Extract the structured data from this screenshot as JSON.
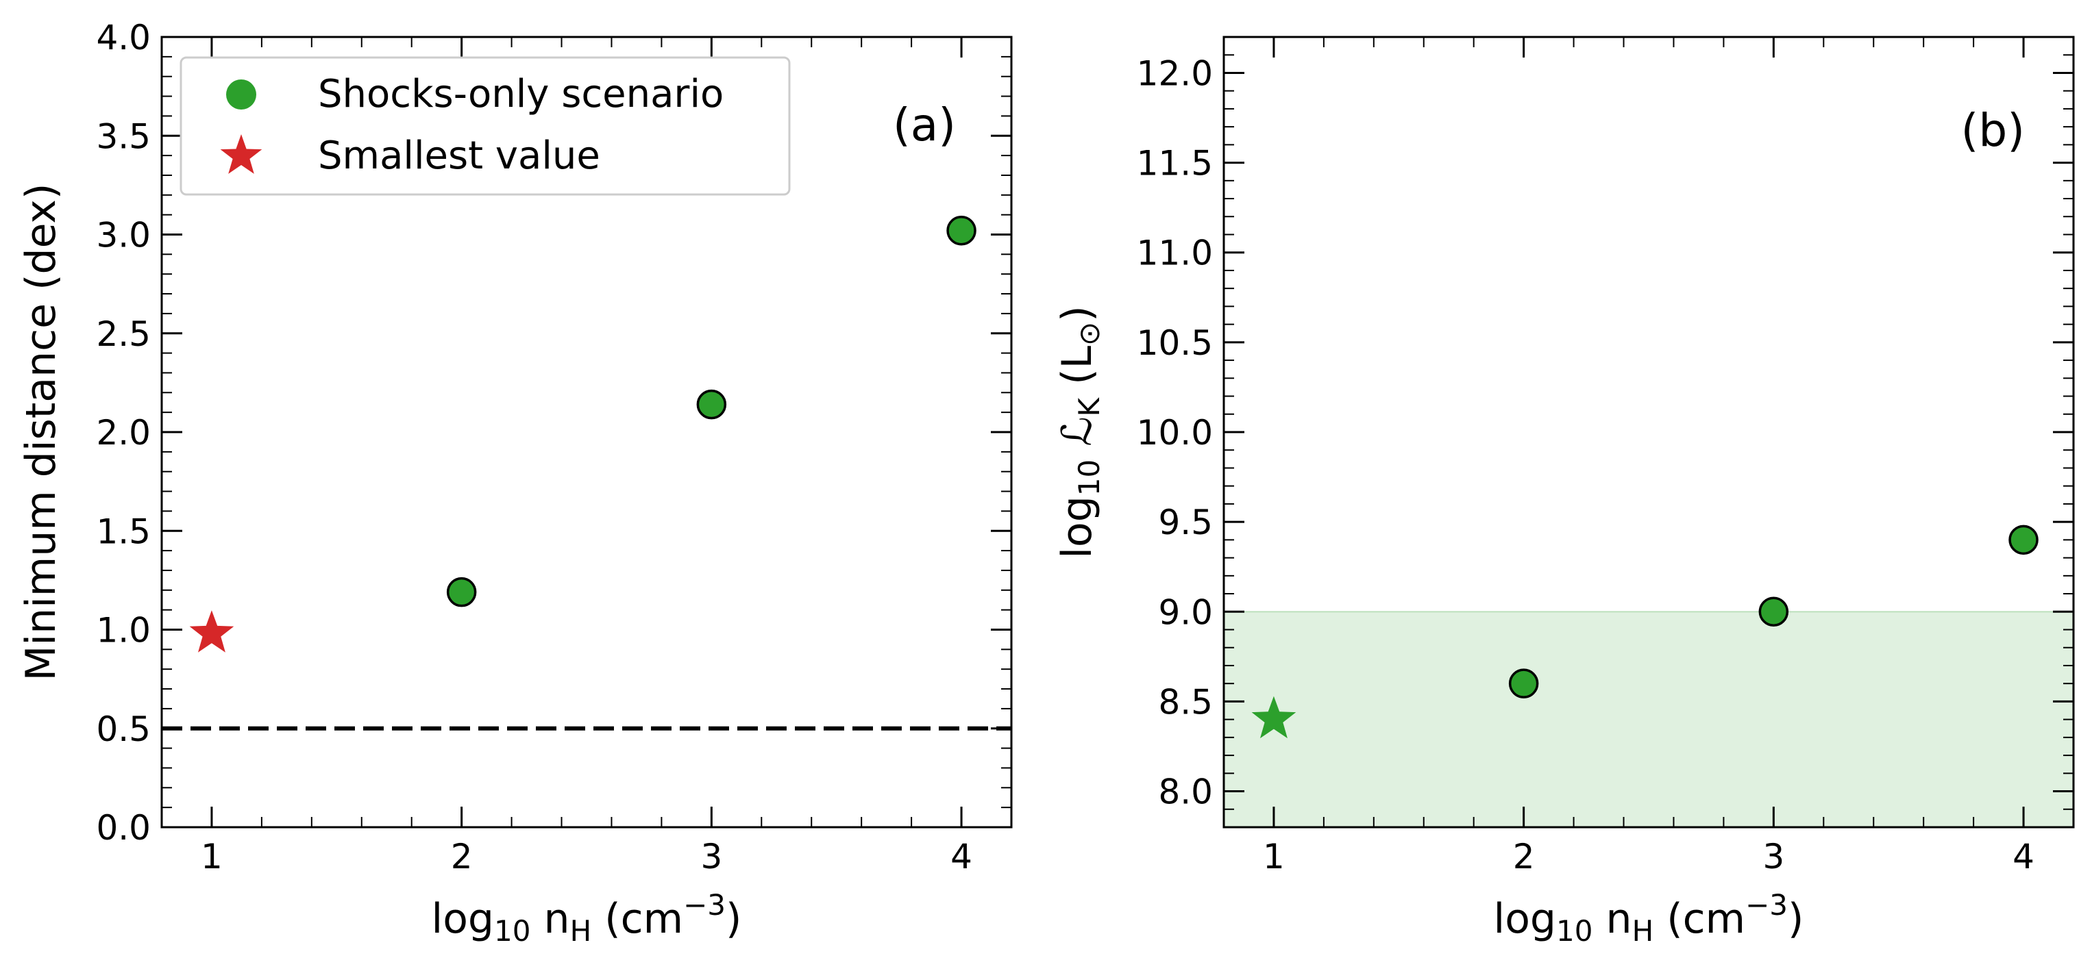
{
  "chart_data": [
    {
      "type": "scatter",
      "panel_label": "(a)",
      "xlabel": {
        "base": "log",
        "sub": "10",
        "mid": "  n",
        "msub": "H",
        "unit": " (cm",
        "sup": "−3",
        "close": ")"
      },
      "ylabel": "Minimum distance (dex)",
      "xlim": [
        0.8,
        4.2
      ],
      "ylim": [
        0.0,
        4.0
      ],
      "x_ticks": [
        1,
        2,
        3,
        4
      ],
      "x_tick_labels": [
        "1",
        "2",
        "3",
        "4"
      ],
      "y_ticks": [
        0.0,
        0.5,
        1.0,
        1.5,
        2.0,
        2.5,
        3.0,
        3.5,
        4.0
      ],
      "y_tick_labels": [
        "0.0",
        "0.5",
        "1.0",
        "1.5",
        "2.0",
        "2.5",
        "3.0",
        "3.5",
        "4.0"
      ],
      "series": [
        {
          "name": "Shocks-only scenario",
          "marker": "circle",
          "color": "#2ca02c",
          "x": [
            2,
            3,
            4
          ],
          "y": [
            1.19,
            2.14,
            3.02
          ]
        },
        {
          "name": "Smallest value",
          "marker": "star",
          "color": "#d62728",
          "x": [
            1
          ],
          "y": [
            0.98
          ]
        }
      ],
      "hline": {
        "y": 0.5,
        "style": "dashed",
        "color": "#000000"
      },
      "legend_position": "top-left"
    },
    {
      "type": "scatter",
      "panel_label": "(b)",
      "xlabel": {
        "base": "log",
        "sub": "10",
        "mid": "  n",
        "msub": "H",
        "unit": " (cm",
        "sup": "−3",
        "close": ")"
      },
      "ylabel": {
        "base": "log",
        "sub": "10",
        "mid": "  ℒ",
        "msub": "K",
        "unit": " (L",
        "usub": "⊙",
        "close": ")"
      },
      "xlim": [
        0.8,
        4.2
      ],
      "ylim": [
        7.8,
        12.2
      ],
      "x_ticks": [
        1,
        2,
        3,
        4
      ],
      "x_tick_labels": [
        "1",
        "2",
        "3",
        "4"
      ],
      "y_ticks": [
        8.0,
        8.5,
        9.0,
        9.5,
        10.0,
        10.5,
        11.0,
        11.5,
        12.0
      ],
      "y_tick_labels": [
        "8.0",
        "8.5",
        "9.0",
        "9.5",
        "10.0",
        "10.5",
        "11.0",
        "11.5",
        "12.0"
      ],
      "series": [
        {
          "marker": "circle",
          "color": "#2ca02c",
          "x": [
            2,
            3,
            4
          ],
          "y": [
            8.6,
            9.0,
            9.4
          ]
        },
        {
          "marker": "star",
          "color": "#2ca02c",
          "x": [
            1
          ],
          "y": [
            8.4
          ]
        }
      ],
      "shaded_band": {
        "y_from": 7.8,
        "y_to": 9.0,
        "color": "#2ca02c",
        "opacity": 0.15
      }
    }
  ]
}
